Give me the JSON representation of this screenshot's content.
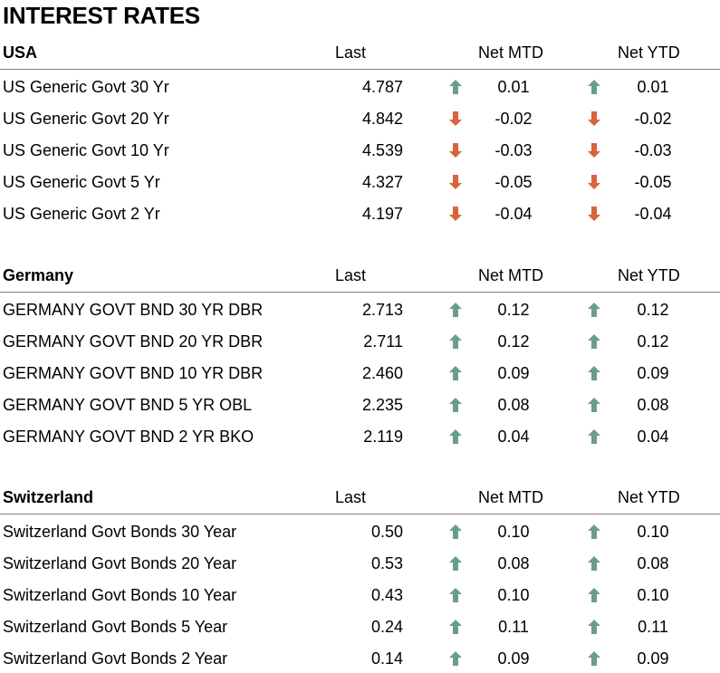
{
  "title": "INTEREST RATES",
  "colors": {
    "up": "#6b9e86",
    "down": "#d9643c",
    "rule": "#7f7f7f"
  },
  "columns": {
    "last": "Last",
    "mtd": "Net MTD",
    "ytd": "Net YTD"
  },
  "sections": [
    {
      "name": "USA",
      "rows": [
        {
          "label": "US Generic Govt 30 Yr",
          "last": "4.787",
          "mtd": "0.01",
          "mtd_dir": "up",
          "ytd": "0.01",
          "ytd_dir": "up"
        },
        {
          "label": "US Generic Govt 20 Yr",
          "last": "4.842",
          "mtd": "-0.02",
          "mtd_dir": "down",
          "ytd": "-0.02",
          "ytd_dir": "down"
        },
        {
          "label": "US Generic Govt 10 Yr",
          "last": "4.539",
          "mtd": "-0.03",
          "mtd_dir": "down",
          "ytd": "-0.03",
          "ytd_dir": "down"
        },
        {
          "label": "US Generic Govt 5 Yr",
          "last": "4.327",
          "mtd": "-0.05",
          "mtd_dir": "down",
          "ytd": "-0.05",
          "ytd_dir": "down"
        },
        {
          "label": "US Generic Govt 2 Yr",
          "last": "4.197",
          "mtd": "-0.04",
          "mtd_dir": "down",
          "ytd": "-0.04",
          "ytd_dir": "down"
        }
      ]
    },
    {
      "name": "Germany",
      "rows": [
        {
          "label": "GERMANY GOVT BND 30 YR DBR",
          "last": "2.713",
          "mtd": "0.12",
          "mtd_dir": "up",
          "ytd": "0.12",
          "ytd_dir": "up"
        },
        {
          "label": "GERMANY GOVT BND 20 YR DBR",
          "last": "2.711",
          "mtd": "0.12",
          "mtd_dir": "up",
          "ytd": "0.12",
          "ytd_dir": "up"
        },
        {
          "label": "GERMANY GOVT BND 10 YR DBR",
          "last": "2.460",
          "mtd": "0.09",
          "mtd_dir": "up",
          "ytd": "0.09",
          "ytd_dir": "up"
        },
        {
          "label": "GERMANY GOVT BND 5 YR OBL",
          "last": "2.235",
          "mtd": "0.08",
          "mtd_dir": "up",
          "ytd": "0.08",
          "ytd_dir": "up"
        },
        {
          "label": "GERMANY GOVT BND 2 YR BKO",
          "last": "2.119",
          "mtd": "0.04",
          "mtd_dir": "up",
          "ytd": "0.04",
          "ytd_dir": "up"
        }
      ]
    },
    {
      "name": "Switzerland",
      "rows": [
        {
          "label": "Switzerland Govt Bonds 30 Year",
          "last": "0.50",
          "mtd": "0.10",
          "mtd_dir": "up",
          "ytd": "0.10",
          "ytd_dir": "up"
        },
        {
          "label": "Switzerland Govt Bonds 20 Year",
          "last": "0.53",
          "mtd": "0.08",
          "mtd_dir": "up",
          "ytd": "0.08",
          "ytd_dir": "up"
        },
        {
          "label": "Switzerland Govt Bonds 10 Year",
          "last": "0.43",
          "mtd": "0.10",
          "mtd_dir": "up",
          "ytd": "0.10",
          "ytd_dir": "up"
        },
        {
          "label": "Switzerland Govt Bonds 5 Year",
          "last": "0.24",
          "mtd": "0.11",
          "mtd_dir": "up",
          "ytd": "0.11",
          "ytd_dir": "up"
        },
        {
          "label": "Switzerland Govt Bonds 2 Year",
          "last": "0.14",
          "mtd": "0.09",
          "mtd_dir": "up",
          "ytd": "0.09",
          "ytd_dir": "up"
        }
      ]
    }
  ]
}
